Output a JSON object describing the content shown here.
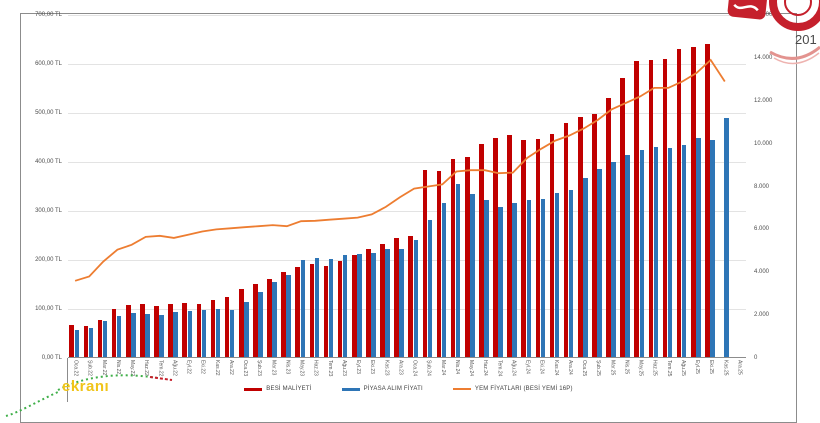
{
  "page": {
    "background": "#ffffff"
  },
  "branding": {
    "logo_year_fragment": "201",
    "logo_color": "#c5202c",
    "watermark_text": "ekranı",
    "watermark_color": "#f0c419"
  },
  "chart_data": {
    "type": "bar",
    "title": "",
    "grid": true,
    "legend_position": "bottom",
    "categories": [
      "Oca.22",
      "Şub.22",
      "Mar.22",
      "Nis.22",
      "May.22",
      "Haz.22",
      "Tem.22",
      "Ağu.22",
      "Eyl.22",
      "Eki.22",
      "Kas.22",
      "Ara.22",
      "Oca.23",
      "Şub.23",
      "Mar.23",
      "Nis.23",
      "May.23",
      "Haz.23",
      "Tem.23",
      "Ağu.23",
      "Eyl.23",
      "Eki.23",
      "Kas.23",
      "Ara.23",
      "Oca.24",
      "Şub.24",
      "Mar.24",
      "Nis.24",
      "May.24",
      "Haz.24",
      "Tem.24",
      "Ağu.24",
      "Eyl.24",
      "Eki.24",
      "Kas.24",
      "Ara.24",
      "Oca.25",
      "Şub.25",
      "Mar.25",
      "Nis.25",
      "May.25",
      "Haz.25",
      "Tem.25",
      "Ağu.25",
      "Eyl.25",
      "Eki.25",
      "Kas.25",
      "Ara.25"
    ],
    "series": [
      {
        "name": "BESİ MALİYETİ",
        "type": "bar",
        "axis": "left",
        "color": "#c00000",
        "values": [
          68,
          65,
          78,
          100,
          108,
          110,
          106,
          110,
          112,
          110,
          118,
          125,
          140,
          152,
          162,
          175,
          185,
          192,
          188,
          198,
          210,
          222,
          232,
          245,
          250,
          384,
          382,
          406,
          410,
          437,
          449,
          455,
          445,
          447,
          457,
          480,
          492,
          498,
          531,
          571,
          606,
          608,
          610,
          630,
          635,
          640,
          null,
          null
        ]
      },
      {
        "name": "PİYASA ALIM FİYATI",
        "type": "bar",
        "axis": "left",
        "color": "#2e75b6",
        "values": [
          58,
          62,
          76,
          85,
          92,
          90,
          88,
          93,
          95,
          97,
          100,
          97,
          115,
          135,
          155,
          170,
          200,
          205,
          202,
          210,
          212,
          215,
          222,
          222,
          240,
          281,
          317,
          355,
          334,
          322,
          308,
          317,
          322,
          324,
          337,
          343,
          367,
          385,
          400,
          415,
          425,
          430,
          428,
          435,
          450,
          445,
          490,
          null
        ]
      },
      {
        "name": "YEM FİYATLARI (BESİ YEMİ 16P)",
        "type": "line",
        "axis": "right",
        "color": "#ed7d31",
        "values": [
          3600,
          3800,
          4500,
          5050,
          5280,
          5650,
          5700,
          5600,
          5750,
          5900,
          6000,
          6050,
          6100,
          6150,
          6200,
          6150,
          6380,
          6400,
          6450,
          6500,
          6550,
          6700,
          7050,
          7500,
          7900,
          8000,
          8100,
          8700,
          8760,
          8760,
          8620,
          8650,
          9330,
          9760,
          10140,
          10380,
          10700,
          11100,
          11600,
          11900,
          12200,
          12600,
          12600,
          12900,
          13300,
          13900,
          12900,
          null
        ]
      }
    ],
    "left_axis": {
      "unit": "TL",
      "min": 0,
      "max": 700,
      "tick_labels": [
        "700,00 TL",
        "600,00 TL",
        "500,00 TL",
        "400,00 TL",
        "300,00 TL",
        "200,00 TL",
        "100,00 TL",
        "0,00 TL"
      ]
    },
    "right_axis": {
      "min": 0,
      "max": 16000,
      "tick_labels": [
        "16.000",
        "14.000",
        "12.000",
        "10.000",
        "8.000",
        "6.000",
        "4.000",
        "2.000",
        "0"
      ]
    }
  }
}
